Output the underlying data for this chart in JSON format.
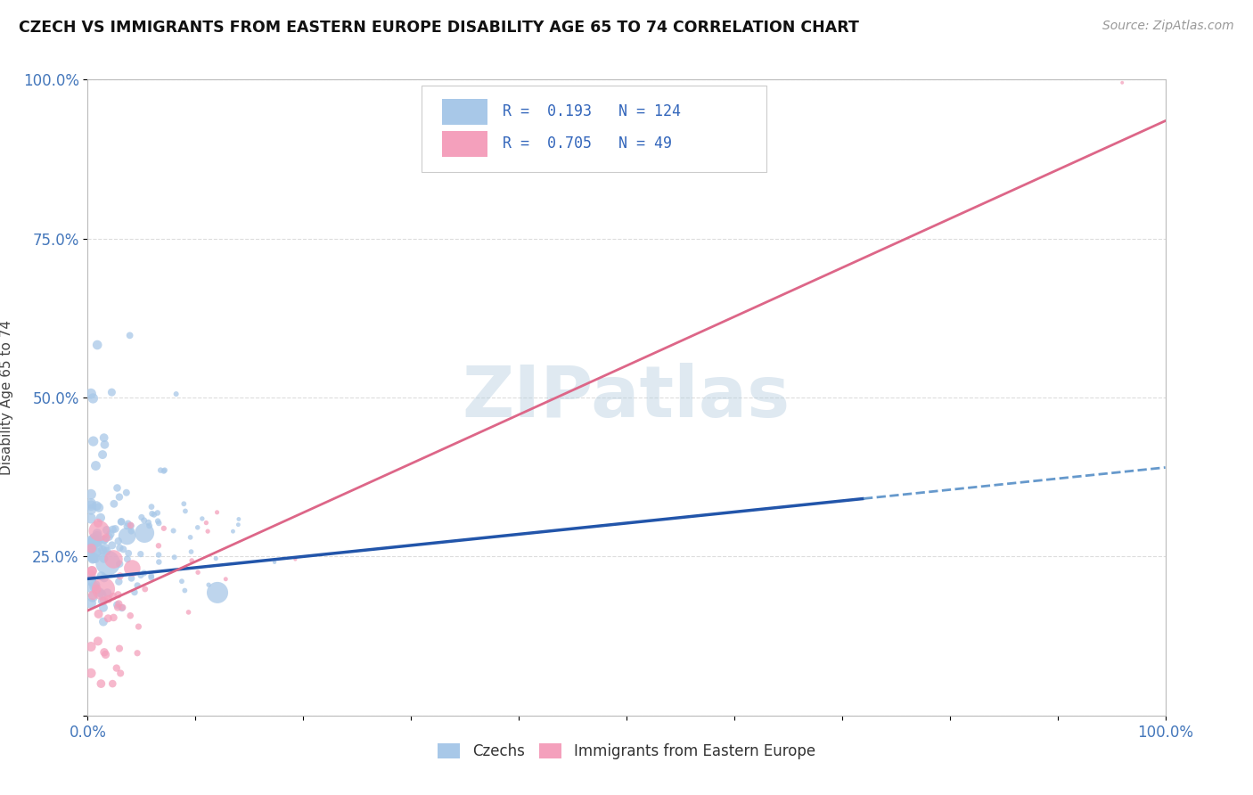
{
  "title": "CZECH VS IMMIGRANTS FROM EASTERN EUROPE DISABILITY AGE 65 TO 74 CORRELATION CHART",
  "source": "Source: ZipAtlas.com",
  "ylabel": "Disability Age 65 to 74",
  "xlim": [
    0.0,
    1.0
  ],
  "ylim": [
    0.0,
    1.0
  ],
  "ytick_positions": [
    0.0,
    0.25,
    0.5,
    0.75,
    1.0
  ],
  "yticklabels": [
    "",
    "25.0%",
    "50.0%",
    "75.0%",
    "100.0%"
  ],
  "xticklabels_show": [
    "0.0%",
    "100.0%"
  ],
  "czechs_color": "#a8c8e8",
  "immigrants_color": "#f4a0bc",
  "czechs_line_color": "#2255aa",
  "czechs_dash_color": "#6699cc",
  "immigrants_line_color": "#dd6688",
  "czechs_R": 0.193,
  "czechs_N": 124,
  "immigrants_R": 0.705,
  "immigrants_N": 49,
  "watermark": "ZIPatlas",
  "grid_color": "#dddddd",
  "background_color": "#ffffff",
  "czech_line_x0": 0.0,
  "czech_line_y0": 0.215,
  "czech_line_x_solid_end": 0.72,
  "czech_line_slope": 0.175,
  "czech_line_x_dash_end": 1.0,
  "imm_line_x0": 0.0,
  "imm_line_y0": 0.165,
  "imm_line_x_end": 1.0,
  "imm_line_slope": 0.77
}
